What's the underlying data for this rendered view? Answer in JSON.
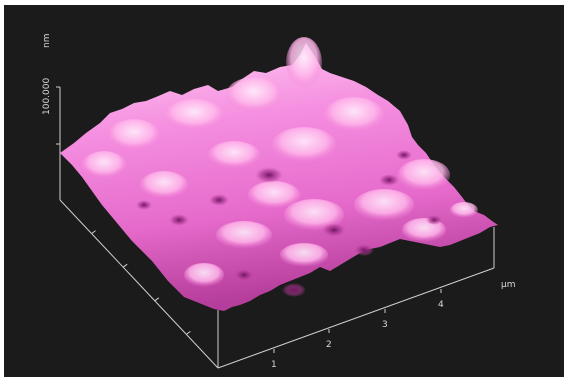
{
  "axes": {
    "z": {
      "unit": "nm",
      "tick_label": "100.000"
    },
    "x": {
      "unit": "µm",
      "tick_labels": [
        "1",
        "2",
        "3",
        "4"
      ]
    }
  },
  "colors": {
    "background": "#1b1b1b",
    "surface_highlight": "#ffd6f3",
    "surface_mid": "#f06fd3",
    "surface_shadow": "#7a1d6a",
    "axis_lines": "#cfcfcf"
  }
}
